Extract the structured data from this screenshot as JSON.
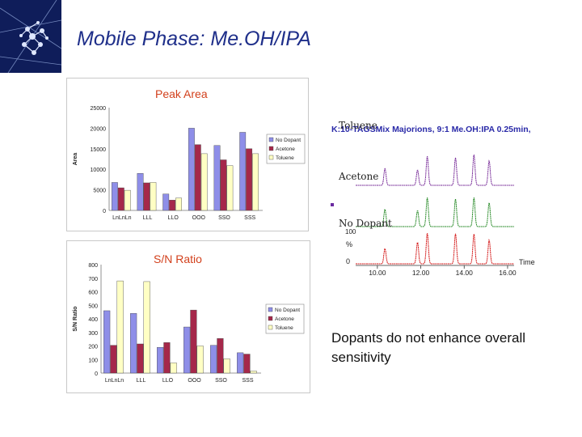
{
  "slide": {
    "title": "Mobile Phase: Me.OH/IPA",
    "note": "Dopants do not enhance overall sensitivity"
  },
  "colors": {
    "no_dopant": "#8e8ee8",
    "acetone": "#a5284a",
    "toluene": "#ffffc4",
    "title": "#1f2f8a",
    "label": "#d2401c"
  },
  "chromatogram": {
    "header": "K:10-TAGSMix Majorions, 9:1 Me.OH:IPA 0.25min,",
    "trace_labels": [
      "Toluene",
      "Acetone",
      "No Dopant"
    ],
    "y_axis_labels": [
      "100",
      "%",
      "0"
    ],
    "x_ticks": [
      "10.00",
      "12.00",
      "14.00",
      "16.00"
    ],
    "x_label": "Time",
    "traces": [
      {
        "name": "Toluene",
        "color": "#7a2f9a",
        "peaks": [
          10.35,
          11.85,
          12.3,
          13.6,
          14.45,
          15.15
        ]
      },
      {
        "name": "Acetone",
        "color": "#2b8c2b",
        "peaks": [
          10.35,
          11.85,
          12.3,
          13.6,
          14.45,
          15.15
        ]
      },
      {
        "name": "No Dopant",
        "color": "#d41a1a",
        "peaks": [
          10.35,
          11.85,
          12.3,
          13.6,
          14.45,
          15.15
        ]
      }
    ]
  },
  "chart_data": [
    {
      "type": "bar",
      "title": "Peak Area",
      "categories": [
        "LnLnLn",
        "LLL",
        "LLO",
        "OOO",
        "SSO",
        "SSS"
      ],
      "series": [
        {
          "name": "No Dopant",
          "values": [
            6800,
            9000,
            4000,
            20000,
            15800,
            19000
          ]
        },
        {
          "name": "Acetone",
          "values": [
            5500,
            6700,
            2500,
            16000,
            12300,
            15000
          ]
        },
        {
          "name": "Toluene",
          "values": [
            4900,
            6800,
            3000,
            13800,
            10900,
            13800
          ]
        }
      ],
      "ylabel": "Area",
      "ylim": [
        0,
        25000
      ],
      "yticks": [
        "0",
        "5000",
        "10000",
        "15000",
        "20000",
        "25000"
      ],
      "legend": "right"
    },
    {
      "type": "bar",
      "title": "S/N Ratio",
      "categories": [
        "LnLnLn",
        "LLL",
        "LLO",
        "OOO",
        "SSO",
        "SSS"
      ],
      "series": [
        {
          "name": "No Dopant",
          "values": [
            460,
            440,
            190,
            340,
            205,
            150
          ]
        },
        {
          "name": "Acetone",
          "values": [
            205,
            215,
            225,
            465,
            255,
            140
          ]
        },
        {
          "name": "Toluene",
          "values": [
            680,
            675,
            75,
            200,
            105,
            15
          ]
        }
      ],
      "ylabel": "S/N Ratio",
      "ylim": [
        0,
        800
      ],
      "yticks": [
        "0",
        "100",
        "200",
        "300",
        "400",
        "500",
        "600",
        "700",
        "800"
      ],
      "legend": "right"
    }
  ]
}
